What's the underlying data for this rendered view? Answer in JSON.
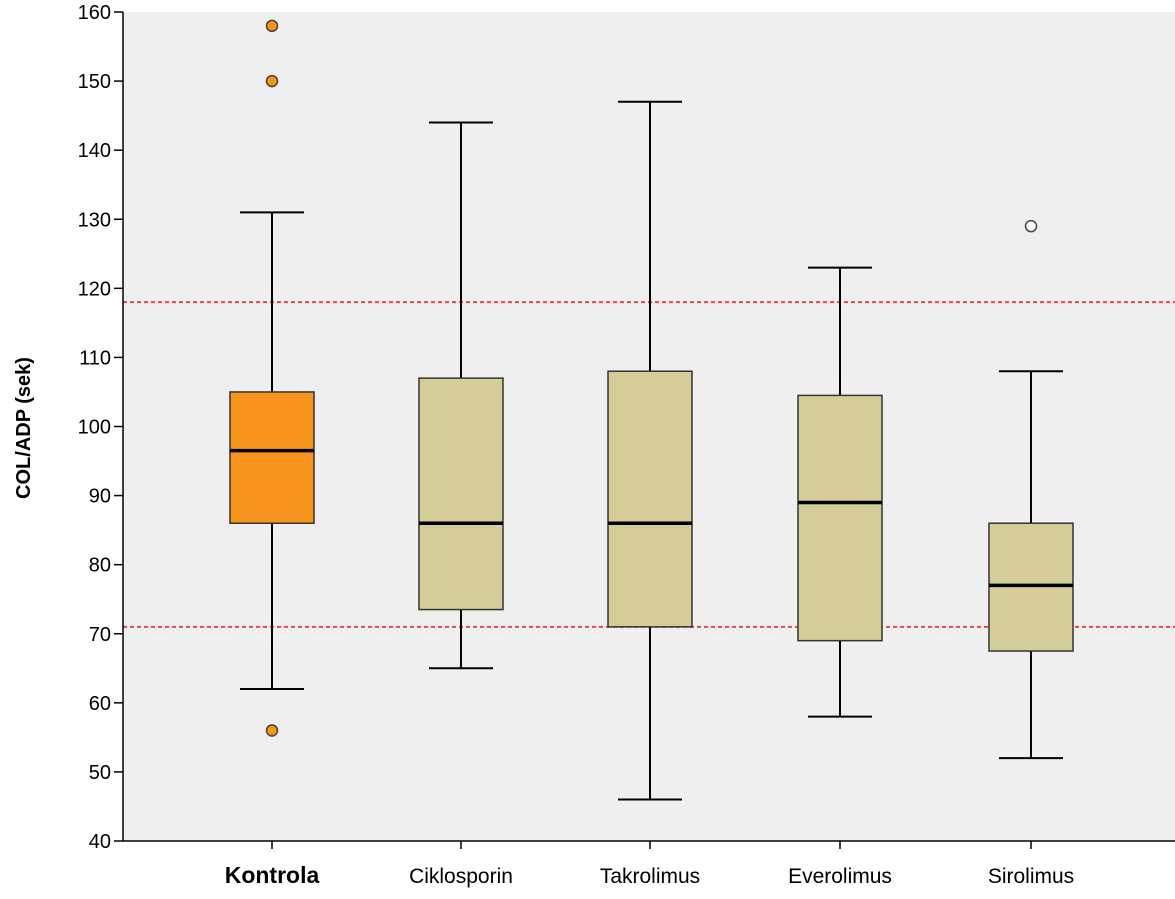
{
  "chart_data": {
    "type": "boxplot",
    "ylabel": "COL/ADP (sek)",
    "xlabel": "",
    "ylim": [
      40,
      160
    ],
    "yticks": [
      40,
      50,
      60,
      70,
      80,
      90,
      100,
      110,
      120,
      130,
      140,
      150,
      160
    ],
    "grid": false,
    "reference_lines": [
      118,
      71
    ],
    "categories": [
      "Kontrola",
      "Ciklosporin",
      "Takrolimus",
      "Everolimus",
      "Sirolimus"
    ],
    "boxes": [
      {
        "category": "Kontrola",
        "whisker_low": 62,
        "q1": 86,
        "median": 96.5,
        "q3": 105,
        "whisker_high": 131,
        "outliers": [
          158,
          150,
          56
        ],
        "color": "#f7941d",
        "outlier_fill": "#f7941d",
        "label_bold": true
      },
      {
        "category": "Ciklosporin",
        "whisker_low": 65,
        "q1": 73.5,
        "median": 86,
        "q3": 107,
        "whisker_high": 144,
        "outliers": [],
        "color": "#d4cd98",
        "outlier_fill": "#ffffff",
        "label_bold": false
      },
      {
        "category": "Takrolimus",
        "whisker_low": 46,
        "q1": 71,
        "median": 86,
        "q3": 108,
        "whisker_high": 147,
        "outliers": [],
        "color": "#d4cd98",
        "outlier_fill": "#ffffff",
        "label_bold": false
      },
      {
        "category": "Everolimus",
        "whisker_low": 58,
        "q1": 69,
        "median": 89,
        "q3": 104.5,
        "whisker_high": 123,
        "outliers": [],
        "color": "#d4cd98",
        "outlier_fill": "#ffffff",
        "label_bold": false
      },
      {
        "category": "Sirolimus",
        "whisker_low": 52,
        "q1": 67.5,
        "median": 77,
        "q3": 86,
        "whisker_high": 108,
        "outliers": [
          129
        ],
        "color": "#d4cd98",
        "outlier_fill": "#ffffff",
        "label_bold": false
      }
    ],
    "colors": {
      "plot_background": "#efefef",
      "reference_line": "#e8474c",
      "axis": "#000000"
    }
  }
}
